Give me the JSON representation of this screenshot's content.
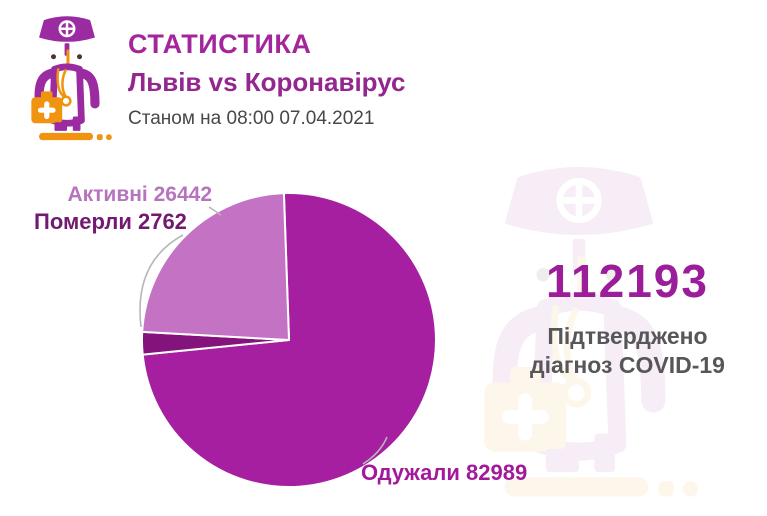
{
  "header": {
    "title": "СТАТИСТИКА",
    "subtitle": "Львів vs Коронавірус",
    "date_line": "Станом на 08:00 07.04.2021"
  },
  "summary": {
    "total_number": "112193",
    "caption_line1": "Підтверджено",
    "caption_line2": "діагноз COVID-19"
  },
  "icons": {
    "header_icon": "doctor-icon",
    "background_icon": "doctor-watermark-icon"
  },
  "colors": {
    "title": "#a3269d",
    "subtitle": "#93278f",
    "date": "#47474a",
    "total_number": "#9c1d99",
    "total_caption": "#57575a",
    "leader_line": "#b7b7b9",
    "icon_purple": "#9a2ba0",
    "icon_orange": "#f0930f",
    "background": "#ffffff"
  },
  "chart_data": {
    "type": "pie",
    "title": "СТАТИСТИКА — Львів vs Коронавірус",
    "as_of": "Станом на 08:00 07.04.2021",
    "total": 112193,
    "total_caption": "Підтверджено діагноз COVID-19",
    "direction": "clockwise",
    "start_angle_deg": -92,
    "legend_position": "callout-labels",
    "slices": [
      {
        "id": "recovered",
        "name": "Одужали",
        "value": 82989,
        "label": "Одужали 82989",
        "color": "#a51fa0",
        "label_color": "#a21a9b"
      },
      {
        "id": "died",
        "name": "Померли",
        "value": 2762,
        "label": "Померли 2762",
        "color": "#84137c",
        "label_color": "#721a70"
      },
      {
        "id": "active",
        "name": "Активні",
        "value": 26442,
        "label": "Активні 26442",
        "color": "#c473c4",
        "label_color": "#b774be"
      }
    ]
  }
}
